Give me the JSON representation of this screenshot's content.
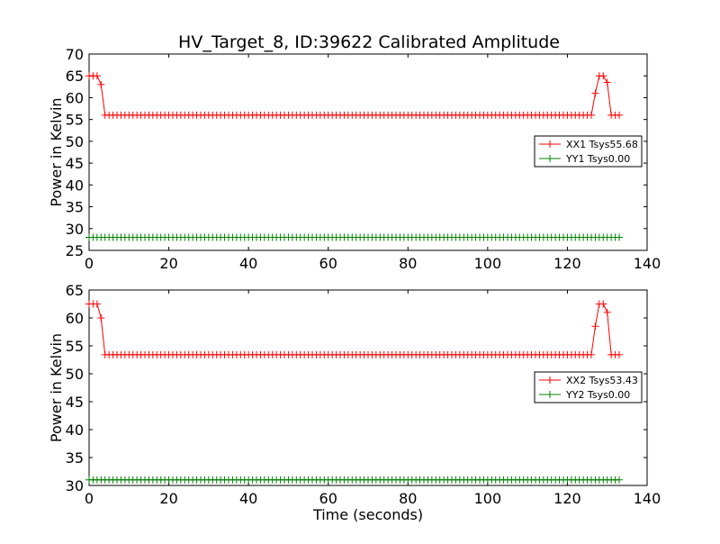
{
  "figure": {
    "title": "HV_Target_8, ID:39622 Calibrated Amplitude"
  },
  "chart_data": [
    {
      "type": "line",
      "title": "HV_Target_8, ID:39622 Calibrated Amplitude",
      "xlabel": "",
      "ylabel": "Power in Kelvin",
      "xlim": [
        0,
        140
      ],
      "ylim": [
        25,
        70
      ],
      "xticks": [
        0,
        20,
        40,
        60,
        80,
        100,
        120,
        140
      ],
      "yticks": [
        25,
        30,
        35,
        40,
        45,
        50,
        55,
        60,
        65,
        70
      ],
      "grid": false,
      "legend_position": "right",
      "marker": "+",
      "x_start": 0,
      "x_step": 1,
      "series": [
        {
          "name": "XX1 Tsys55.68",
          "color": "#ff0000",
          "values": [
            65,
            65,
            65,
            63,
            56,
            56,
            56,
            56,
            56,
            56,
            56,
            56,
            56,
            56,
            56,
            56,
            56,
            56,
            56,
            56,
            56,
            56,
            56,
            56,
            56,
            56,
            56,
            56,
            56,
            56,
            56,
            56,
            56,
            56,
            56,
            56,
            56,
            56,
            56,
            56,
            56,
            56,
            56,
            56,
            56,
            56,
            56,
            56,
            56,
            56,
            56,
            56,
            56,
            56,
            56,
            56,
            56,
            56,
            56,
            56,
            56,
            56,
            56,
            56,
            56,
            56,
            56,
            56,
            56,
            56,
            56,
            56,
            56,
            56,
            56,
            56,
            56,
            56,
            56,
            56,
            56,
            56,
            56,
            56,
            56,
            56,
            56,
            56,
            56,
            56,
            56,
            56,
            56,
            56,
            56,
            56,
            56,
            56,
            56,
            56,
            56,
            56,
            56,
            56,
            56,
            56,
            56,
            56,
            56,
            56,
            56,
            56,
            56,
            56,
            56,
            56,
            56,
            56,
            56,
            56,
            56,
            56,
            56,
            56,
            56,
            56,
            56,
            61,
            65,
            65,
            63.5,
            56,
            56,
            56
          ]
        },
        {
          "name": "YY1 Tsys0.00",
          "color": "#008000",
          "values": [
            28,
            28,
            28,
            28,
            28,
            28,
            28,
            28,
            28,
            28,
            28,
            28,
            28,
            28,
            28,
            28,
            28,
            28,
            28,
            28,
            28,
            28,
            28,
            28,
            28,
            28,
            28,
            28,
            28,
            28,
            28,
            28,
            28,
            28,
            28,
            28,
            28,
            28,
            28,
            28,
            28,
            28,
            28,
            28,
            28,
            28,
            28,
            28,
            28,
            28,
            28,
            28,
            28,
            28,
            28,
            28,
            28,
            28,
            28,
            28,
            28,
            28,
            28,
            28,
            28,
            28,
            28,
            28,
            28,
            28,
            28,
            28,
            28,
            28,
            28,
            28,
            28,
            28,
            28,
            28,
            28,
            28,
            28,
            28,
            28,
            28,
            28,
            28,
            28,
            28,
            28,
            28,
            28,
            28,
            28,
            28,
            28,
            28,
            28,
            28,
            28,
            28,
            28,
            28,
            28,
            28,
            28,
            28,
            28,
            28,
            28,
            28,
            28,
            28,
            28,
            28,
            28,
            28,
            28,
            28,
            28,
            28,
            28,
            28,
            28,
            28,
            28,
            28,
            28,
            28,
            28,
            28,
            28,
            28
          ]
        }
      ]
    },
    {
      "type": "line",
      "title": "",
      "xlabel": "Time (seconds)",
      "ylabel": "Power in Kelvin",
      "xlim": [
        0,
        140
      ],
      "ylim": [
        30,
        65
      ],
      "xticks": [
        0,
        20,
        40,
        60,
        80,
        100,
        120,
        140
      ],
      "yticks": [
        30,
        35,
        40,
        45,
        50,
        55,
        60,
        65
      ],
      "grid": false,
      "legend_position": "right",
      "marker": "+",
      "x_start": 0,
      "x_step": 1,
      "series": [
        {
          "name": "XX2 Tsys53.43",
          "color": "#ff0000",
          "values": [
            62.5,
            62.5,
            62.5,
            60,
            53.4,
            53.4,
            53.4,
            53.4,
            53.4,
            53.4,
            53.4,
            53.4,
            53.4,
            53.4,
            53.4,
            53.4,
            53.4,
            53.4,
            53.4,
            53.4,
            53.4,
            53.4,
            53.4,
            53.4,
            53.4,
            53.4,
            53.4,
            53.4,
            53.4,
            53.4,
            53.4,
            53.4,
            53.4,
            53.4,
            53.4,
            53.4,
            53.4,
            53.4,
            53.4,
            53.4,
            53.4,
            53.4,
            53.4,
            53.4,
            53.4,
            53.4,
            53.4,
            53.4,
            53.4,
            53.4,
            53.4,
            53.4,
            53.4,
            53.4,
            53.4,
            53.4,
            53.4,
            53.4,
            53.4,
            53.4,
            53.4,
            53.4,
            53.4,
            53.4,
            53.4,
            53.4,
            53.4,
            53.4,
            53.4,
            53.4,
            53.4,
            53.4,
            53.4,
            53.4,
            53.4,
            53.4,
            53.4,
            53.4,
            53.4,
            53.4,
            53.4,
            53.4,
            53.4,
            53.4,
            53.4,
            53.4,
            53.4,
            53.4,
            53.4,
            53.4,
            53.4,
            53.4,
            53.4,
            53.4,
            53.4,
            53.4,
            53.4,
            53.4,
            53.4,
            53.4,
            53.4,
            53.4,
            53.4,
            53.4,
            53.4,
            53.4,
            53.4,
            53.4,
            53.4,
            53.4,
            53.4,
            53.4,
            53.4,
            53.4,
            53.4,
            53.4,
            53.4,
            53.4,
            53.4,
            53.4,
            53.4,
            53.4,
            53.4,
            53.4,
            53.4,
            53.4,
            53.4,
            58.5,
            62.5,
            62.5,
            61,
            53.4,
            53.4,
            53.4
          ]
        },
        {
          "name": "YY2 Tsys0.00",
          "color": "#008000",
          "values": [
            31,
            31,
            31,
            31,
            31,
            31,
            31,
            31,
            31,
            31,
            31,
            31,
            31,
            31,
            31,
            31,
            31,
            31,
            31,
            31,
            31,
            31,
            31,
            31,
            31,
            31,
            31,
            31,
            31,
            31,
            31,
            31,
            31,
            31,
            31,
            31,
            31,
            31,
            31,
            31,
            31,
            31,
            31,
            31,
            31,
            31,
            31,
            31,
            31,
            31,
            31,
            31,
            31,
            31,
            31,
            31,
            31,
            31,
            31,
            31,
            31,
            31,
            31,
            31,
            31,
            31,
            31,
            31,
            31,
            31,
            31,
            31,
            31,
            31,
            31,
            31,
            31,
            31,
            31,
            31,
            31,
            31,
            31,
            31,
            31,
            31,
            31,
            31,
            31,
            31,
            31,
            31,
            31,
            31,
            31,
            31,
            31,
            31,
            31,
            31,
            31,
            31,
            31,
            31,
            31,
            31,
            31,
            31,
            31,
            31,
            31,
            31,
            31,
            31,
            31,
            31,
            31,
            31,
            31,
            31,
            31,
            31,
            31,
            31,
            31,
            31,
            31,
            31,
            31,
            31,
            31,
            31,
            31,
            31
          ]
        }
      ]
    }
  ]
}
